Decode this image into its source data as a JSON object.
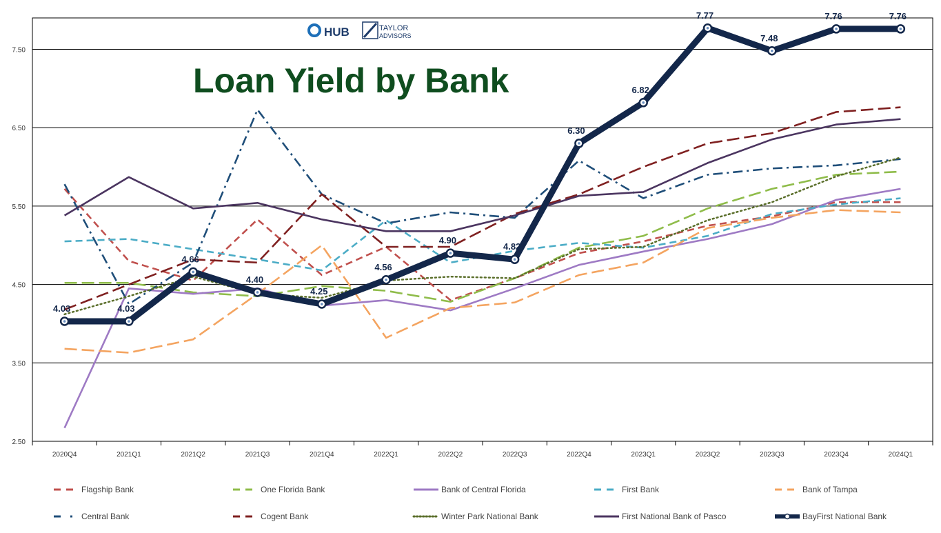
{
  "logos": {
    "hub_text": "HUB",
    "taylor_line1": "TAYLOR",
    "taylor_line2": "ADVISORS"
  },
  "colors": {
    "title": "#0f4d1f",
    "grid": "#000000",
    "axis_text": "#333333",
    "label_text": "#13274a"
  },
  "chart_data": {
    "type": "line",
    "title": "Loan Yield by Bank",
    "xlabel": "",
    "ylabel": "",
    "ylim": [
      2.5,
      7.9
    ],
    "yticks": [
      "2.50",
      "3.50",
      "4.50",
      "5.50",
      "6.50",
      "7.50"
    ],
    "grid": true,
    "legend_position": "bottom",
    "categories": [
      "2020Q4",
      "2021Q1",
      "2021Q2",
      "2021Q3",
      "2021Q4",
      "2022Q1",
      "2022Q2",
      "2022Q3",
      "2022Q4",
      "2023Q1",
      "2023Q2",
      "2023Q3",
      "2023Q4",
      "2024Q1"
    ],
    "series": [
      {
        "name": "Flagship Bank",
        "color": "#c0504d",
        "style": "dash",
        "values": [
          5.72,
          4.8,
          4.55,
          5.33,
          4.62,
          4.98,
          4.3,
          4.58,
          4.9,
          5.05,
          5.25,
          5.37,
          5.55,
          5.55
        ]
      },
      {
        "name": "One Florida Bank",
        "color": "#8fbc4a",
        "style": "longdash",
        "values": [
          4.52,
          4.52,
          4.4,
          4.35,
          4.48,
          4.42,
          4.28,
          4.58,
          4.97,
          5.12,
          5.47,
          5.72,
          5.9,
          5.94
        ]
      },
      {
        "name": "Bank of Central Florida",
        "color": "#9e7ac4",
        "style": "solid",
        "values": [
          2.67,
          4.45,
          4.38,
          4.45,
          4.23,
          4.3,
          4.17,
          4.45,
          4.75,
          4.92,
          5.08,
          5.27,
          5.58,
          5.72
        ]
      },
      {
        "name": "First Bank",
        "color": "#4bacc6",
        "style": "dash",
        "values": [
          5.05,
          5.08,
          4.95,
          4.82,
          4.68,
          5.32,
          4.78,
          4.93,
          5.03,
          4.97,
          5.12,
          5.4,
          5.52,
          5.6
        ]
      },
      {
        "name": "Bank of Tampa",
        "color": "#f4a460",
        "style": "longdash",
        "values": [
          3.68,
          3.63,
          3.8,
          4.38,
          5.0,
          3.82,
          4.2,
          4.27,
          4.62,
          4.78,
          5.22,
          5.35,
          5.45,
          5.42
        ]
      },
      {
        "name": "Central Bank",
        "color": "#1f4e79",
        "style": "dashdot",
        "values": [
          5.78,
          4.25,
          4.78,
          6.73,
          5.65,
          5.28,
          5.42,
          5.35,
          6.08,
          5.6,
          5.9,
          5.98,
          6.02,
          6.1
        ]
      },
      {
        "name": "Cogent Bank",
        "color": "#7f2020",
        "style": "longdash",
        "values": [
          4.18,
          4.5,
          4.82,
          4.78,
          5.65,
          4.98,
          4.98,
          5.4,
          5.65,
          6.0,
          6.3,
          6.43,
          6.7,
          6.76
        ]
      },
      {
        "name": "Winter Park National Bank",
        "color": "#5a6e2a",
        "style": "dotted",
        "values": [
          4.12,
          4.35,
          4.6,
          4.38,
          4.33,
          4.55,
          4.6,
          4.58,
          4.95,
          4.98,
          5.32,
          5.55,
          5.88,
          6.12
        ]
      },
      {
        "name": "First National Bank of Pasco",
        "color": "#4b3560",
        "style": "solid",
        "values": [
          5.38,
          5.87,
          5.47,
          5.54,
          5.33,
          5.18,
          5.18,
          5.38,
          5.63,
          5.68,
          6.05,
          6.35,
          6.54,
          6.61
        ]
      },
      {
        "name": "BayFirst National Bank",
        "color": "#13274a",
        "style": "thick",
        "values": [
          4.03,
          4.03,
          4.66,
          4.4,
          4.25,
          4.56,
          4.9,
          4.82,
          6.3,
          6.82,
          7.77,
          7.48,
          7.76,
          7.76
        ]
      }
    ],
    "data_labels": {
      "series": "BayFirst National Bank",
      "labels": [
        "4.03",
        "4.03",
        "4.66",
        "4.40",
        "4.25",
        "4.56",
        "4.90",
        "4.82",
        "6.30",
        "6.82",
        "7.77",
        "7.48",
        "7.76",
        "7.76"
      ]
    }
  }
}
